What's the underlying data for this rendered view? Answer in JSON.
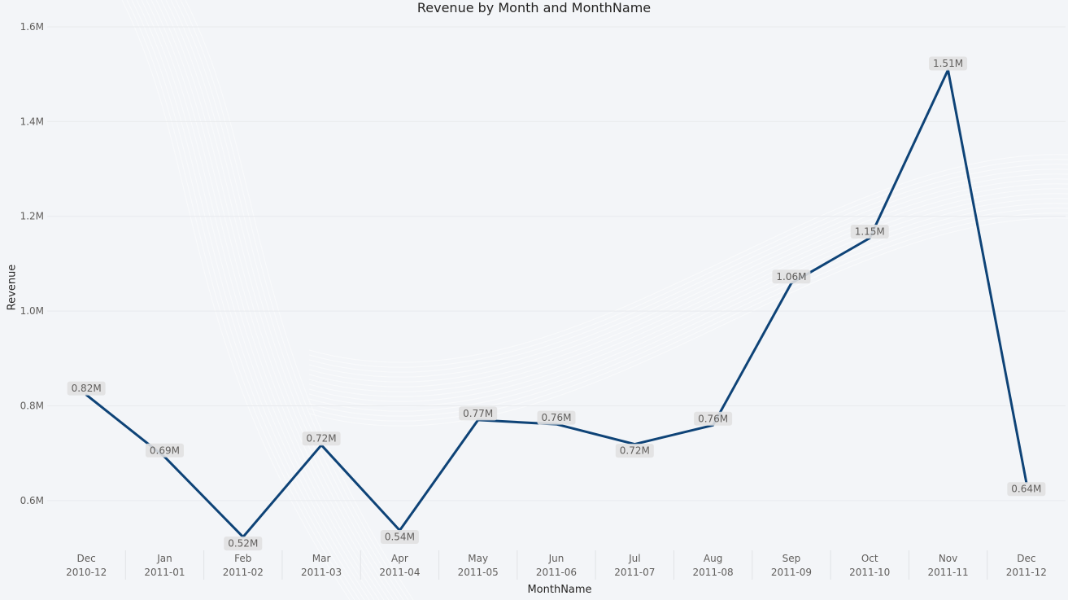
{
  "chart_data": {
    "type": "line",
    "title": "Revenue by Month and MonthName",
    "xlabel": "MonthName",
    "ylabel": "Revenue",
    "ylim": [
      0.5,
      1.6
    ],
    "y_ticks": [
      "0.6M",
      "0.8M",
      "1.0M",
      "1.2M",
      "1.4M",
      "1.6M"
    ],
    "y_tick_values": [
      0.6,
      0.8,
      1.0,
      1.2,
      1.4,
      1.6
    ],
    "grid": true,
    "categories": [
      {
        "month": "Dec",
        "period": "2010-12"
      },
      {
        "month": "Jan",
        "period": "2011-01"
      },
      {
        "month": "Feb",
        "period": "2011-02"
      },
      {
        "month": "Mar",
        "period": "2011-03"
      },
      {
        "month": "Apr",
        "period": "2011-04"
      },
      {
        "month": "May",
        "period": "2011-05"
      },
      {
        "month": "Jun",
        "period": "2011-06"
      },
      {
        "month": "Jul",
        "period": "2011-07"
      },
      {
        "month": "Aug",
        "period": "2011-08"
      },
      {
        "month": "Sep",
        "period": "2011-09"
      },
      {
        "month": "Oct",
        "period": "2011-10"
      },
      {
        "month": "Nov",
        "period": "2011-11"
      },
      {
        "month": "Dec",
        "period": "2011-12"
      }
    ],
    "series": [
      {
        "values": [
          0.823,
          0.692,
          0.523,
          0.717,
          0.537,
          0.77,
          0.761,
          0.719,
          0.759,
          1.059,
          1.154,
          1.509,
          0.638
        ],
        "labels": [
          "0.82M",
          "0.69M",
          "0.52M",
          "0.72M",
          "0.54M",
          "0.77M",
          "0.76M",
          "0.72M",
          "0.76M",
          "1.06M",
          "1.15M",
          "1.51M",
          "0.64M"
        ],
        "color": "#0e4377"
      }
    ]
  }
}
